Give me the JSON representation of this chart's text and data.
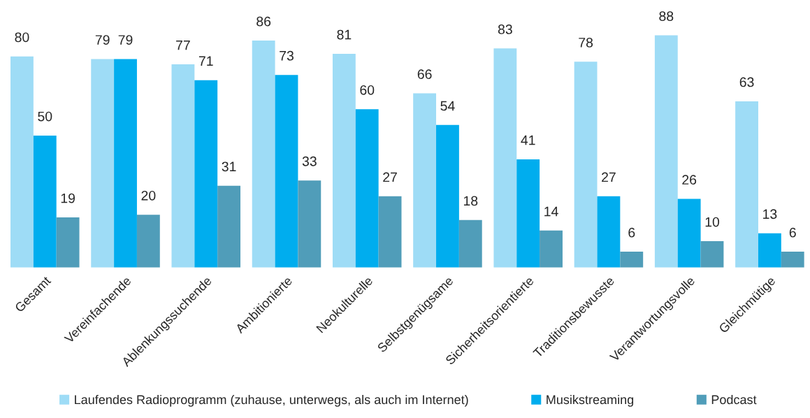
{
  "chart_data": {
    "type": "bar",
    "categories": [
      "Gesamt",
      "Vereinfachende",
      "Ablenkungssuchende",
      "Ambitionierte",
      "Neokulturelle",
      "Selbstgenügsame",
      "Sicherheitsorientierte",
      "Traditionsbewusste",
      "Verantwortungsvolle",
      "Gleichmütige"
    ],
    "series": [
      {
        "name": "Laufendes Radioprogramm (zuhause, unterwegs, als auch im Internet)",
        "color": "#9edcf6",
        "values": [
          80,
          79,
          77,
          86,
          81,
          66,
          83,
          78,
          88,
          63
        ]
      },
      {
        "name": "Musikstreaming",
        "color": "#00adee",
        "values": [
          50,
          79,
          71,
          73,
          60,
          54,
          41,
          27,
          26,
          13
        ]
      },
      {
        "name": "Podcast",
        "color": "#509db9",
        "values": [
          19,
          20,
          31,
          33,
          27,
          18,
          14,
          6,
          10,
          6
        ]
      }
    ],
    "data_labels": true,
    "legend": "bottom",
    "grid": false,
    "tick_labels": "x"
  }
}
